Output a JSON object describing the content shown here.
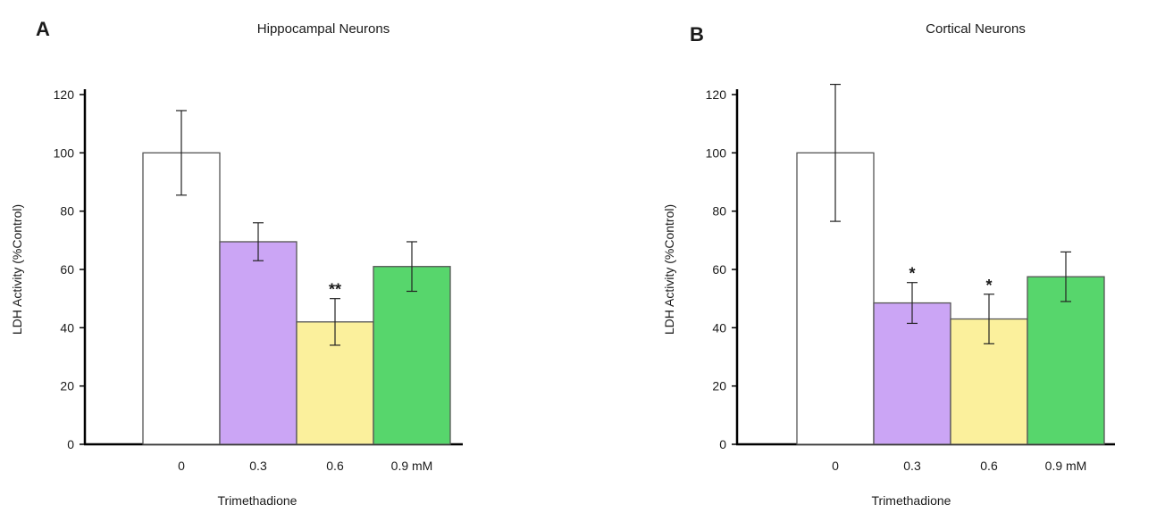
{
  "chart_data": [
    {
      "type": "bar",
      "panel": "A",
      "title": "Hippocampal Neurons",
      "xlabel": "Trimethadione",
      "ylabel": "LDH Activity (%Control)",
      "ylim": [
        0,
        120
      ],
      "yticks": [
        0,
        20,
        40,
        60,
        80,
        100,
        120
      ],
      "categories": [
        "0",
        "0.3",
        "0.6",
        "0.9 mM"
      ],
      "values": [
        100,
        69.5,
        42,
        61
      ],
      "errors": [
        14.5,
        6.5,
        8,
        8.5
      ],
      "significance": [
        "",
        "",
        "**",
        ""
      ],
      "colors": [
        "#ffffff",
        "#cba5f5",
        "#fbf09c",
        "#57d66c"
      ]
    },
    {
      "type": "bar",
      "panel": "B",
      "title": "Cortical Neurons",
      "xlabel": "Trimethadione",
      "ylabel": "LDH Activity (%Control)",
      "ylim": [
        0,
        120
      ],
      "yticks": [
        0,
        20,
        40,
        60,
        80,
        100,
        120
      ],
      "categories": [
        "0",
        "0.3",
        "0.6",
        "0.9 mM"
      ],
      "values": [
        100,
        48.5,
        43,
        57.5
      ],
      "errors": [
        23.5,
        7,
        8.5,
        8.5
      ],
      "significance": [
        "",
        "*",
        "*",
        ""
      ],
      "colors": [
        "#ffffff",
        "#cba5f5",
        "#fbf09c",
        "#57d66c"
      ]
    }
  ]
}
